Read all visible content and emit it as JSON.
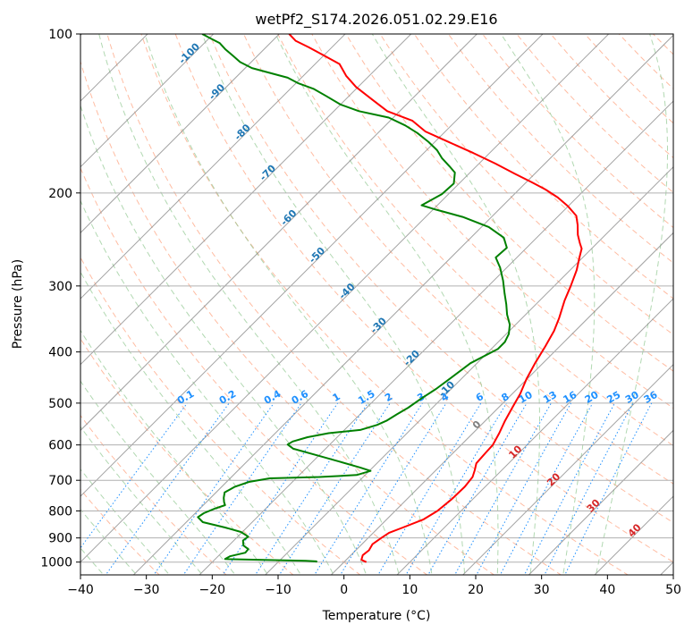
{
  "chart_data": {
    "type": "line",
    "diagram": "skew-t log-p",
    "title": "wetPf2_S174.2026.051.02.29.E16",
    "xlabel": "Temperature (°C)",
    "ylabel": "Pressure (hPa)",
    "xlim": [
      -40,
      50
    ],
    "ylim_hpa": [
      1050,
      100
    ],
    "y_scale": "log",
    "x_ticks": [
      -40,
      -30,
      -20,
      -10,
      0,
      10,
      20,
      30,
      40,
      50
    ],
    "y_ticks": [
      100,
      200,
      300,
      400,
      500,
      600,
      700,
      800,
      900,
      1000
    ],
    "grid": true,
    "series": [
      {
        "key": "temperature",
        "color": "#ff0000",
        "points": [
          [
            3.4,
            1000
          ],
          [
            2.3,
            990
          ],
          [
            1.8,
            970
          ],
          [
            2.0,
            950
          ],
          [
            1.6,
            925
          ],
          [
            2.0,
            900
          ],
          [
            2.4,
            880
          ],
          [
            3.7,
            860
          ],
          [
            5.6,
            830
          ],
          [
            6.4,
            800
          ],
          [
            6.8,
            760
          ],
          [
            6.9,
            720
          ],
          [
            6.6,
            690
          ],
          [
            5.9,
            670
          ],
          [
            5.1,
            650
          ],
          [
            4.9,
            620
          ],
          [
            4.8,
            600
          ],
          [
            4.0,
            570
          ],
          [
            3.0,
            540
          ],
          [
            2.1,
            510
          ],
          [
            1.2,
            480
          ],
          [
            -0.1,
            450
          ],
          [
            -1.2,
            420
          ],
          [
            -2.2,
            390
          ],
          [
            -3.2,
            365
          ],
          [
            -4.4,
            345
          ],
          [
            -6.2,
            320
          ],
          [
            -7.5,
            300
          ],
          [
            -9.0,
            280
          ],
          [
            -10.5,
            265
          ],
          [
            -11.5,
            255
          ],
          [
            -12.6,
            249
          ],
          [
            -14.2,
            240
          ],
          [
            -15.7,
            230
          ],
          [
            -17.3,
            221
          ],
          [
            -20.0,
            212
          ],
          [
            -22.9,
            204
          ],
          [
            -26.0,
            197
          ],
          [
            -29.1,
            191
          ],
          [
            -33.0,
            184
          ],
          [
            -37.5,
            176
          ],
          [
            -42.5,
            168
          ],
          [
            -48.0,
            160
          ],
          [
            -53.0,
            153
          ],
          [
            -56.6,
            146
          ],
          [
            -61.9,
            140
          ],
          [
            -66.0,
            133
          ],
          [
            -70.3,
            126
          ],
          [
            -73.5,
            120
          ],
          [
            -76.3,
            114
          ],
          [
            -79.8,
            110
          ],
          [
            -83.5,
            106
          ],
          [
            -86.5,
            103
          ],
          [
            -88.5,
            100
          ]
        ]
      },
      {
        "key": "dewpoint",
        "color": "#008000",
        "points": [
          [
            -4.1,
            1000
          ],
          [
            -4.3,
            997
          ],
          [
            -6.0,
            994
          ],
          [
            -13.3,
            990
          ],
          [
            -18.5,
            987
          ],
          [
            -18.2,
            975
          ],
          [
            -16.4,
            960
          ],
          [
            -16.5,
            945
          ],
          [
            -17.8,
            930
          ],
          [
            -18.6,
            910
          ],
          [
            -18.4,
            895
          ],
          [
            -20.2,
            877
          ],
          [
            -23.3,
            860
          ],
          [
            -27.5,
            840
          ],
          [
            -29.0,
            822
          ],
          [
            -28.7,
            808
          ],
          [
            -27.8,
            793
          ],
          [
            -26.7,
            780
          ],
          [
            -27.3,
            770
          ],
          [
            -28.0,
            756
          ],
          [
            -28.7,
            738
          ],
          [
            -28.0,
            720
          ],
          [
            -26.6,
            705
          ],
          [
            -24.0,
            694
          ],
          [
            -16.6,
            690
          ],
          [
            -11.3,
            684
          ],
          [
            -9.8,
            672
          ],
          [
            -11.9,
            662
          ],
          [
            -16.0,
            645
          ],
          [
            -20.2,
            628
          ],
          [
            -24.9,
            610
          ],
          [
            -26.4,
            599
          ],
          [
            -26.1,
            591
          ],
          [
            -24.5,
            580
          ],
          [
            -21.9,
            570
          ],
          [
            -17.6,
            562
          ],
          [
            -15.8,
            550
          ],
          [
            -15.0,
            540
          ],
          [
            -14.4,
            525
          ],
          [
            -13.7,
            510
          ],
          [
            -13.1,
            490
          ],
          [
            -12.3,
            470
          ],
          [
            -11.8,
            450
          ],
          [
            -11.0,
            420
          ],
          [
            -9.0,
            395
          ],
          [
            -9.0,
            383
          ],
          [
            -9.6,
            370
          ],
          [
            -10.9,
            355
          ],
          [
            -12.8,
            340
          ],
          [
            -14.5,
            325
          ],
          [
            -16.4,
            310
          ],
          [
            -18.6,
            293
          ],
          [
            -21.0,
            277
          ],
          [
            -23.2,
            265
          ],
          [
            -23.0,
            254
          ],
          [
            -25.0,
            243
          ],
          [
            -28.9,
            232
          ],
          [
            -34.4,
            222
          ],
          [
            -39.6,
            215
          ],
          [
            -42.4,
            211
          ],
          [
            -41.0,
            201
          ],
          [
            -40.8,
            192
          ],
          [
            -42.3,
            183
          ],
          [
            -44.1,
            178
          ],
          [
            -46.4,
            172
          ],
          [
            -48.4,
            166
          ],
          [
            -51.0,
            160
          ],
          [
            -54.0,
            154
          ],
          [
            -57.0,
            149
          ],
          [
            -60.7,
            144
          ],
          [
            -66.2,
            140
          ],
          [
            -70.0,
            136
          ],
          [
            -73.5,
            131
          ],
          [
            -76.5,
            127
          ],
          [
            -79.6,
            124
          ],
          [
            -82.1,
            121
          ],
          [
            -86.2,
            118
          ],
          [
            -89.0,
            116
          ],
          [
            -91.7,
            113
          ],
          [
            -93.7,
            110
          ],
          [
            -95.8,
            107
          ],
          [
            -97.7,
            104
          ],
          [
            -99.7,
            102
          ],
          [
            -101.7,
            100
          ]
        ]
      }
    ],
    "isotherm_labels": [
      "-100",
      "-90",
      "-80",
      "-70",
      "-60",
      "-50",
      "-40",
      "-30",
      "-20",
      "-10"
    ],
    "mixing_ratio_labels": [
      "0.1",
      "0.2",
      "0.4",
      "0.6",
      "1",
      "1.5",
      "2",
      "3",
      "4",
      "6",
      "8",
      "10",
      "13",
      "16",
      "20",
      "25",
      "30",
      "36"
    ],
    "positive_isotherm_labels": [
      "0",
      "10",
      "20",
      "30",
      "40"
    ],
    "colors": {
      "isotherm_label": "#1f77b4",
      "mixing_ratio": "#1e90ff",
      "positive_isotherm_label": "#d62728",
      "zero_label": "#808080",
      "dry_adiabat": "#ffa07a",
      "moist_adiabat": "#90c890",
      "isotherm_line": "#8c8c8c",
      "isobar_line": "#b0b0b0"
    }
  }
}
